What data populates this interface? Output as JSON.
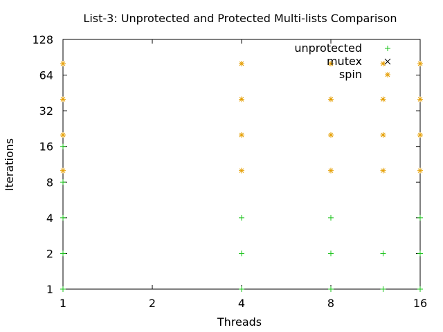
{
  "chart_data": {
    "type": "scatter",
    "title": "List-3: Unprotected and Protected Multi-lists Comparison",
    "xlabel": "Threads",
    "ylabel": "Iterations",
    "xscale": "log2",
    "yscale": "log2",
    "xlim": [
      1,
      16
    ],
    "ylim": [
      1,
      128
    ],
    "xticks": [
      1,
      2,
      4,
      8,
      16
    ],
    "yticks": [
      1,
      2,
      4,
      8,
      16,
      32,
      64,
      128
    ],
    "grid": false,
    "legend_position": "top-right",
    "series": [
      {
        "name": "unprotected",
        "marker": "plus",
        "color": "#19c319",
        "points": [
          [
            1,
            1
          ],
          [
            1,
            2
          ],
          [
            1,
            4
          ],
          [
            1,
            8
          ],
          [
            1,
            16
          ],
          [
            4,
            1
          ],
          [
            4,
            2
          ],
          [
            4,
            4
          ],
          [
            8,
            1
          ],
          [
            8,
            2
          ],
          [
            8,
            4
          ],
          [
            12,
            1
          ],
          [
            12,
            2
          ],
          [
            16,
            1
          ],
          [
            16,
            2
          ],
          [
            16,
            4
          ]
        ]
      },
      {
        "name": "mutex",
        "marker": "cross",
        "color": "#000000",
        "points": []
      },
      {
        "name": "spin",
        "marker": "star",
        "color": "#e59e00",
        "points": [
          [
            1,
            10
          ],
          [
            1,
            20
          ],
          [
            1,
            40
          ],
          [
            1,
            80
          ],
          [
            4,
            10
          ],
          [
            4,
            20
          ],
          [
            4,
            40
          ],
          [
            4,
            80
          ],
          [
            8,
            10
          ],
          [
            8,
            20
          ],
          [
            8,
            40
          ],
          [
            8,
            80
          ],
          [
            12,
            10
          ],
          [
            12,
            20
          ],
          [
            12,
            40
          ],
          [
            12,
            80
          ],
          [
            16,
            10
          ],
          [
            16,
            20
          ],
          [
            16,
            40
          ],
          [
            16,
            80
          ]
        ]
      }
    ]
  }
}
